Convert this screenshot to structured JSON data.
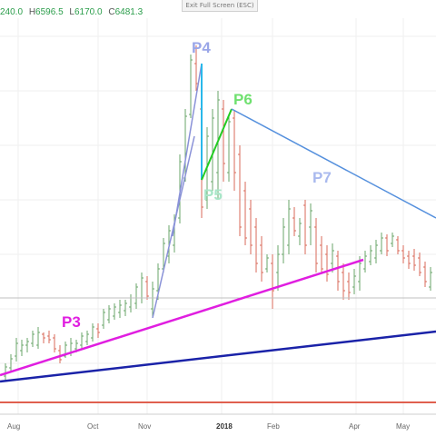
{
  "header": {
    "open": "240.0",
    "high_label": "H",
    "high": "6596.5",
    "low_label": "L",
    "low": "6170.0",
    "close_label": "C",
    "close": "6481.3",
    "exit_fullscreen": "Exit Full Screen (ESC)"
  },
  "chart_data": {
    "type": "candlestick",
    "title": "",
    "xlabel": "",
    "ylabel": "",
    "x_ticks": [
      "Aug",
      "Oct",
      "Nov",
      "2018",
      "Feb",
      "Apr",
      "May"
    ],
    "annotations": [
      {
        "text": "P3",
        "color": "#e01ee0"
      },
      {
        "text": "P4",
        "color": "#9aa6e8"
      },
      {
        "text": "P5",
        "color": "#a8e6c8"
      },
      {
        "text": "P6",
        "color": "#6fe06f"
      },
      {
        "text": "P7",
        "color": "#a9b9ee"
      }
    ],
    "colors": {
      "up": "#6aa56a",
      "down": "#d96a5a"
    }
  }
}
